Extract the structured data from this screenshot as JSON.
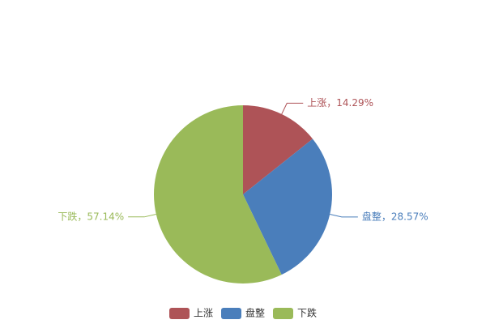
{
  "chart_data": {
    "type": "pie",
    "categories": [
      "上涨",
      "盘整",
      "下跌"
    ],
    "values": [
      14.29,
      28.57,
      57.14
    ],
    "value_labels": [
      "上涨，14.29%",
      "盘整，28.57%",
      "下跌，57.14%"
    ],
    "colors": [
      "#ae5357",
      "#4a7ebb",
      "#9aba59"
    ],
    "legend": "bottom"
  }
}
